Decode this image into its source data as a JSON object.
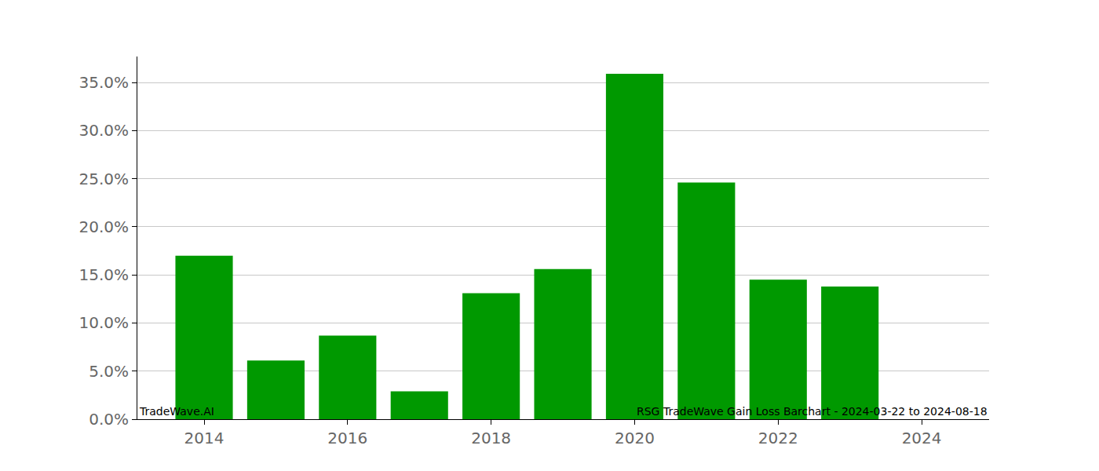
{
  "chart_data": {
    "type": "bar",
    "x": [
      2014,
      2015,
      2016,
      2017,
      2018,
      2019,
      2020,
      2021,
      2022,
      2023
    ],
    "values": [
      17.0,
      6.1,
      8.7,
      2.9,
      13.1,
      15.6,
      35.9,
      24.6,
      14.5,
      13.8
    ],
    "color": "#009900",
    "xlim": [
      2013.07,
      2024.94
    ],
    "xticks": [
      2014,
      2016,
      2018,
      2020,
      2022,
      2024
    ],
    "ylim": [
      0,
      37.7
    ],
    "yticks": [
      {
        "value": 0,
        "label": "0.0%"
      },
      {
        "value": 5,
        "label": "5.0%"
      },
      {
        "value": 10,
        "label": "10.0%"
      },
      {
        "value": 15,
        "label": "15.0%"
      },
      {
        "value": 20,
        "label": "20.0%"
      },
      {
        "value": 25,
        "label": "25.0%"
      },
      {
        "value": 30,
        "label": "30.0%"
      },
      {
        "value": 35,
        "label": "35.0%"
      }
    ],
    "grid": true,
    "annotations": [
      "TradeWave.AI",
      "RSG TradeWave Gain Loss Barchart - 2024-03-22 to 2024-08-18"
    ]
  }
}
